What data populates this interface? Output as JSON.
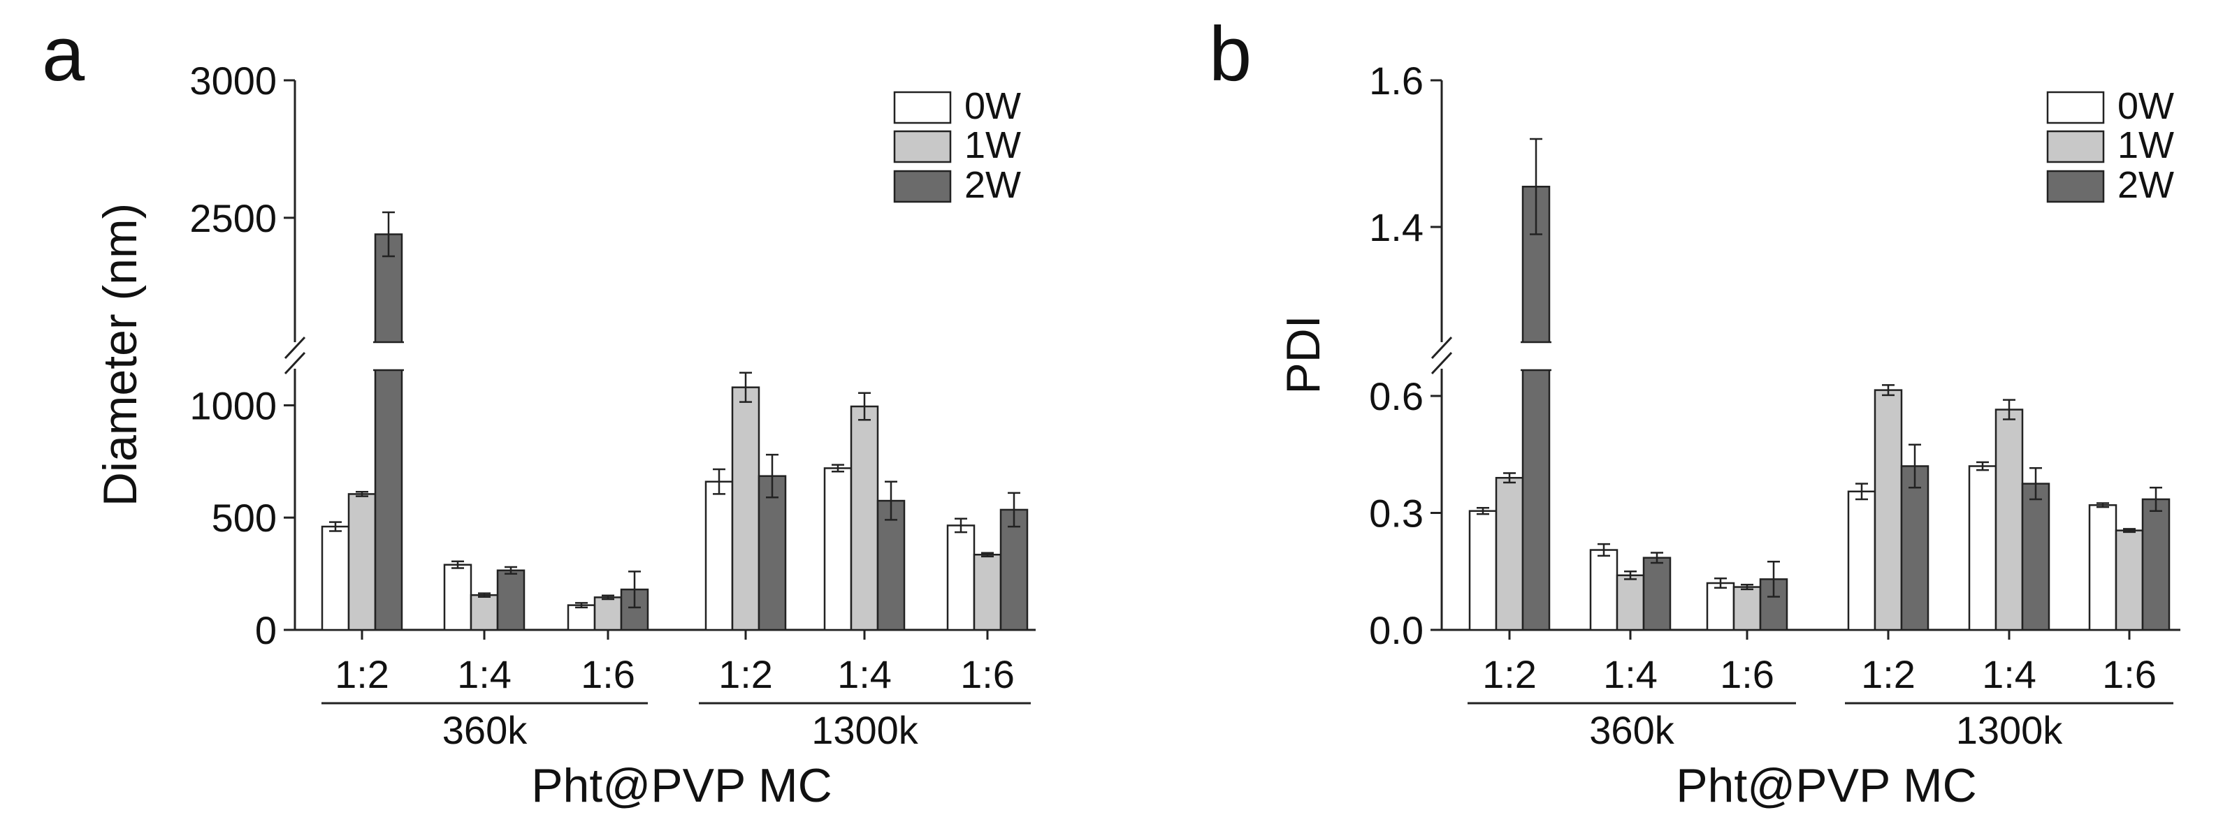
{
  "chart_data": [
    {
      "panel_label": "a",
      "type": "bar",
      "ylabel": "Diameter (nm)",
      "xlabel": "Pht@PVP MC",
      "categories": [
        "1:2",
        "1:4",
        "1:6",
        "1:2",
        "1:4",
        "1:6"
      ],
      "groups": [
        {
          "label": "360k",
          "from": 0,
          "to": 2
        },
        {
          "label": "1300k",
          "from": 3,
          "to": 5
        }
      ],
      "axis_break": {
        "lower": [
          0,
          1250
        ],
        "upper": [
          2200,
          3000
        ]
      },
      "ticks": [
        0,
        500,
        1000,
        2500,
        3000
      ],
      "tick_labels": [
        "0",
        "500",
        "1000",
        "2500",
        "3000"
      ],
      "legend": [
        "0W",
        "1W",
        "2W"
      ],
      "colors": [
        "#ffffff",
        "#c8c8c8",
        "#6b6b6b"
      ],
      "series": [
        {
          "name": "0W",
          "values": [
            460,
            290,
            110,
            660,
            720,
            465
          ],
          "errors": [
            20,
            15,
            10,
            55,
            15,
            30
          ]
        },
        {
          "name": "1W",
          "values": [
            605,
            155,
            145,
            1080,
            995,
            335
          ],
          "errors": [
            10,
            8,
            8,
            65,
            60,
            8
          ]
        },
        {
          "name": "2W",
          "values": [
            2440,
            265,
            180,
            685,
            575,
            535
          ],
          "errors": [
            80,
            15,
            80,
            95,
            85,
            75
          ]
        }
      ]
    },
    {
      "panel_label": "b",
      "type": "bar",
      "ylabel": "PDI",
      "xlabel": "Pht@PVP MC",
      "categories": [
        "1:2",
        "1:4",
        "1:6",
        "1:2",
        "1:4",
        "1:6"
      ],
      "groups": [
        {
          "label": "360k",
          "from": 0,
          "to": 2
        },
        {
          "label": "1300k",
          "from": 3,
          "to": 5
        }
      ],
      "axis_break": {
        "lower": [
          0,
          0.72
        ],
        "upper": [
          1.3,
          1.6
        ]
      },
      "ticks": [
        0.0,
        0.3,
        0.6,
        1.4,
        1.6
      ],
      "tick_labels": [
        "0.0",
        "0.3",
        "0.6",
        "1.4",
        "1.6"
      ],
      "legend": [
        "0W",
        "1W",
        "2W"
      ],
      "colors": [
        "#ffffff",
        "#c8c8c8",
        "#6b6b6b"
      ],
      "series": [
        {
          "name": "0W",
          "values": [
            0.305,
            0.205,
            0.12,
            0.355,
            0.42,
            0.32
          ],
          "errors": [
            0.008,
            0.015,
            0.012,
            0.02,
            0.01,
            0.005
          ]
        },
        {
          "name": "1W",
          "values": [
            0.39,
            0.14,
            0.11,
            0.615,
            0.565,
            0.255
          ],
          "errors": [
            0.012,
            0.01,
            0.006,
            0.013,
            0.025,
            0.004
          ]
        },
        {
          "name": "2W",
          "values": [
            1.455,
            0.185,
            0.13,
            0.42,
            0.375,
            0.335
          ],
          "errors": [
            0.065,
            0.013,
            0.045,
            0.055,
            0.04,
            0.03
          ]
        }
      ]
    }
  ]
}
